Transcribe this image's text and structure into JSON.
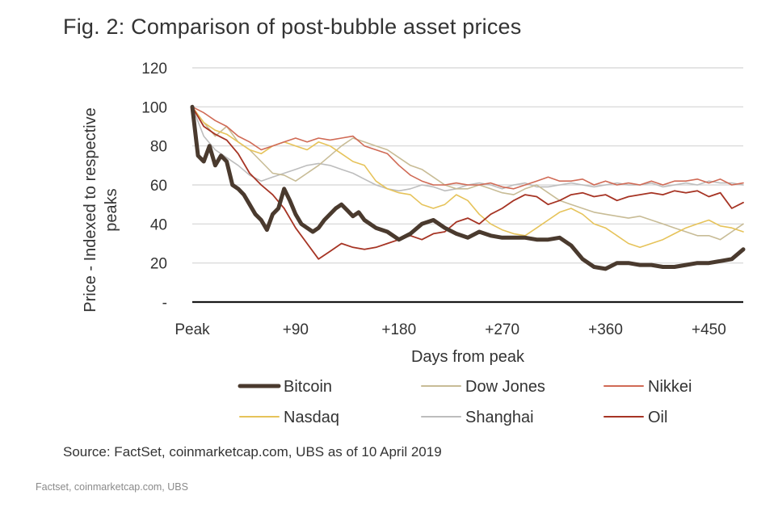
{
  "title": "Fig. 2: Comparison of post-bubble asset prices",
  "source": "Source: FactSet, coinmarketcap.com, UBS as of 10 April 2019",
  "credit": "Factset, coinmarketcap.com, UBS",
  "chart_data": {
    "type": "line",
    "xlabel": "Days from peak",
    "ylabel_lines": [
      "Price - Indexed to respective",
      "peaks"
    ],
    "xlim": [
      0,
      480
    ],
    "ylim": [
      0,
      120
    ],
    "x_ticks": [
      {
        "value": 0,
        "label": "Peak"
      },
      {
        "value": 90,
        "label": "+90"
      },
      {
        "value": 180,
        "label": "+180"
      },
      {
        "value": 270,
        "label": "+270"
      },
      {
        "value": 360,
        "label": "+360"
      },
      {
        "value": 450,
        "label": "+450"
      }
    ],
    "y_ticks": [
      {
        "value": 0,
        "label": "-"
      },
      {
        "value": 20,
        "label": "20"
      },
      {
        "value": 40,
        "label": "40"
      },
      {
        "value": 60,
        "label": "60"
      },
      {
        "value": 80,
        "label": "80"
      },
      {
        "value": 100,
        "label": "100"
      },
      {
        "value": 120,
        "label": "120"
      }
    ],
    "grid": "horizontal",
    "legend_position": "bottom",
    "series": [
      {
        "name": "Bitcoin",
        "color": "#4a3a2e",
        "width": 5,
        "x": [
          0,
          5,
          10,
          15,
          20,
          25,
          30,
          35,
          40,
          45,
          50,
          55,
          60,
          65,
          70,
          75,
          80,
          85,
          90,
          95,
          100,
          105,
          110,
          115,
          120,
          125,
          130,
          135,
          140,
          145,
          150,
          160,
          170,
          180,
          190,
          200,
          210,
          220,
          230,
          240,
          250,
          260,
          270,
          280,
          290,
          300,
          310,
          320,
          330,
          340,
          350,
          360,
          370,
          380,
          390,
          400,
          410,
          420,
          430,
          440,
          450,
          460,
          470,
          480
        ],
        "values": [
          100,
          75,
          72,
          80,
          70,
          75,
          72,
          60,
          58,
          55,
          50,
          45,
          42,
          37,
          45,
          48,
          58,
          52,
          45,
          40,
          38,
          36,
          38,
          42,
          45,
          48,
          50,
          47,
          44,
          46,
          42,
          38,
          36,
          32,
          35,
          40,
          42,
          38,
          35,
          33,
          36,
          34,
          33,
          33,
          33,
          32,
          32,
          33,
          29,
          22,
          18,
          17,
          20,
          20,
          19,
          19,
          18,
          18,
          19,
          20,
          20,
          21,
          22,
          27
        ]
      },
      {
        "name": "Dow Jones",
        "color": "#c8bc96",
        "width": 1.6,
        "x": [
          0,
          10,
          20,
          30,
          40,
          50,
          60,
          70,
          80,
          90,
          100,
          110,
          120,
          130,
          140,
          150,
          160,
          170,
          180,
          190,
          200,
          210,
          220,
          230,
          240,
          250,
          260,
          270,
          280,
          290,
          300,
          310,
          320,
          330,
          340,
          350,
          360,
          370,
          380,
          390,
          400,
          410,
          420,
          430,
          440,
          450,
          460,
          470,
          480
        ],
        "values": [
          100,
          92,
          85,
          90,
          82,
          78,
          72,
          66,
          65,
          62,
          66,
          70,
          75,
          80,
          84,
          82,
          80,
          78,
          74,
          70,
          68,
          64,
          60,
          58,
          58,
          60,
          58,
          56,
          55,
          58,
          60,
          56,
          52,
          50,
          48,
          46,
          45,
          44,
          43,
          44,
          42,
          40,
          38,
          36,
          34,
          34,
          32,
          36,
          40
        ]
      },
      {
        "name": "Nikkei",
        "color": "#d06a55",
        "width": 1.6,
        "x": [
          0,
          10,
          20,
          30,
          40,
          50,
          60,
          70,
          80,
          90,
          100,
          110,
          120,
          130,
          140,
          150,
          160,
          170,
          180,
          190,
          200,
          210,
          220,
          230,
          240,
          250,
          260,
          270,
          280,
          290,
          300,
          310,
          320,
          330,
          340,
          350,
          360,
          370,
          380,
          390,
          400,
          410,
          420,
          430,
          440,
          450,
          460,
          470,
          480
        ],
        "values": [
          100,
          97,
          93,
          90,
          85,
          82,
          78,
          80,
          82,
          84,
          82,
          84,
          83,
          84,
          85,
          80,
          78,
          76,
          70,
          65,
          62,
          60,
          60,
          61,
          60,
          60,
          61,
          59,
          58,
          60,
          62,
          64,
          62,
          62,
          63,
          60,
          62,
          60,
          61,
          60,
          62,
          60,
          62,
          62,
          63,
          61,
          63,
          60,
          61
        ]
      },
      {
        "name": "Nasdaq",
        "color": "#e6c35a",
        "width": 1.6,
        "x": [
          0,
          10,
          20,
          30,
          40,
          50,
          60,
          70,
          80,
          90,
          100,
          110,
          120,
          130,
          140,
          150,
          160,
          170,
          180,
          190,
          200,
          210,
          220,
          230,
          240,
          250,
          260,
          270,
          280,
          290,
          300,
          310,
          320,
          330,
          340,
          350,
          360,
          370,
          380,
          390,
          400,
          410,
          420,
          430,
          440,
          450,
          460,
          470,
          480
        ],
        "values": [
          100,
          92,
          88,
          86,
          82,
          78,
          76,
          80,
          82,
          80,
          78,
          82,
          80,
          76,
          72,
          70,
          62,
          58,
          56,
          55,
          50,
          48,
          50,
          55,
          52,
          45,
          40,
          37,
          35,
          34,
          38,
          42,
          46,
          48,
          45,
          40,
          38,
          34,
          30,
          28,
          30,
          32,
          35,
          38,
          40,
          42,
          39,
          38,
          36
        ]
      },
      {
        "name": "Shanghai",
        "color": "#bdbdbd",
        "width": 1.6,
        "x": [
          0,
          10,
          20,
          30,
          40,
          50,
          60,
          70,
          80,
          90,
          100,
          110,
          120,
          130,
          140,
          150,
          160,
          170,
          180,
          190,
          200,
          210,
          220,
          230,
          240,
          250,
          260,
          270,
          280,
          290,
          300,
          310,
          320,
          330,
          340,
          350,
          360,
          370,
          380,
          390,
          400,
          410,
          420,
          430,
          440,
          450,
          460,
          470,
          480
        ],
        "values": [
          100,
          85,
          78,
          74,
          70,
          65,
          62,
          64,
          66,
          68,
          70,
          71,
          70,
          68,
          66,
          63,
          60,
          58,
          57,
          58,
          60,
          59,
          57,
          58,
          60,
          61,
          60,
          58,
          60,
          61,
          59,
          59,
          60,
          61,
          60,
          59,
          60,
          61,
          60,
          60,
          61,
          59,
          60,
          61,
          60,
          62,
          61,
          61,
          60
        ]
      },
      {
        "name": "Oil",
        "color": "#a63424",
        "width": 1.8,
        "x": [
          0,
          10,
          20,
          30,
          40,
          50,
          60,
          70,
          80,
          90,
          100,
          110,
          120,
          130,
          140,
          150,
          160,
          170,
          180,
          190,
          200,
          210,
          220,
          230,
          240,
          250,
          260,
          270,
          280,
          290,
          300,
          310,
          320,
          330,
          340,
          350,
          360,
          370,
          380,
          390,
          400,
          410,
          420,
          430,
          440,
          450,
          460,
          470,
          480
        ],
        "values": [
          100,
          90,
          86,
          83,
          76,
          66,
          60,
          55,
          48,
          38,
          30,
          22,
          26,
          30,
          28,
          27,
          28,
          30,
          32,
          34,
          32,
          35,
          36,
          41,
          43,
          40,
          45,
          48,
          52,
          55,
          54,
          50,
          52,
          55,
          56,
          54,
          55,
          52,
          54,
          55,
          56,
          55,
          57,
          56,
          57,
          54,
          56,
          48,
          51
        ]
      }
    ]
  }
}
